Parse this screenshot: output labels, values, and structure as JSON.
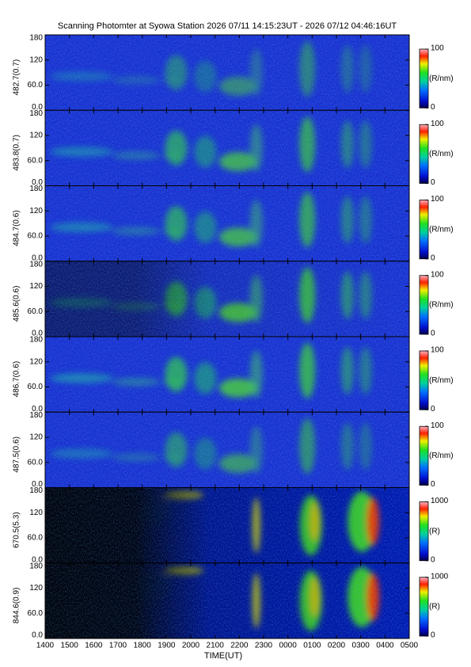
{
  "chart_data": [
    {
      "type": "heatmap",
      "title": "Scanning Photomter at Syowa Station 2026 07/11 14:15:23UT - 2026 07/12 04:46:16UT",
      "ylabel": "482.7(0.7)",
      "xlim": [
        14,
        29
      ],
      "ylim": [
        0,
        180
      ],
      "yticks": [
        {
          "value": 0,
          "label": "0.0"
        },
        {
          "value": 60,
          "label": "60.0"
        },
        120,
        180
      ],
      "clim": [
        0,
        100
      ],
      "cticks": [
        0,
        100
      ],
      "colorbar_label": "(R/nm)"
    },
    {
      "type": "heatmap",
      "ylabel": "483.8(0.7)",
      "xlim": [
        14,
        29
      ],
      "ylim": [
        0,
        180
      ],
      "yticks": [
        {
          "value": 0,
          "label": "0.0"
        },
        {
          "value": 60,
          "label": "60.0"
        },
        120,
        180
      ],
      "clim": [
        0,
        100
      ],
      "cticks": [
        0,
        100
      ],
      "colorbar_label": "(R/nm)"
    },
    {
      "type": "heatmap",
      "ylabel": "484.7(0.6)",
      "xlim": [
        14,
        29
      ],
      "ylim": [
        0,
        180
      ],
      "yticks": [
        {
          "value": 0,
          "label": "0.0"
        },
        {
          "value": 60,
          "label": "60.0"
        },
        120,
        180
      ],
      "clim": [
        0,
        100
      ],
      "cticks": [
        0,
        100
      ],
      "colorbar_label": "(R/nm)"
    },
    {
      "type": "heatmap",
      "ylabel": "485.6(0.6)",
      "xlim": [
        14,
        29
      ],
      "ylim": [
        0,
        180
      ],
      "yticks": [
        {
          "value": 0,
          "label": "0.0"
        },
        {
          "value": 60,
          "label": "60.0"
        },
        120,
        180
      ],
      "clim": [
        0,
        100
      ],
      "cticks": [
        0,
        100
      ],
      "colorbar_label": "(R/nm)"
    },
    {
      "type": "heatmap",
      "ylabel": "486.7(0.6)",
      "xlim": [
        14,
        29
      ],
      "ylim": [
        0,
        180
      ],
      "yticks": [
        {
          "value": 0,
          "label": "0.0"
        },
        {
          "value": 60,
          "label": "60.0"
        },
        120,
        180
      ],
      "clim": [
        0,
        100
      ],
      "cticks": [
        0,
        100
      ],
      "colorbar_label": "(R/nm)"
    },
    {
      "type": "heatmap",
      "ylabel": "487.5(0.6)",
      "xlim": [
        14,
        29
      ],
      "ylim": [
        0,
        180
      ],
      "yticks": [
        {
          "value": 0,
          "label": "0.0"
        },
        {
          "value": 60,
          "label": "60.0"
        },
        120,
        180
      ],
      "clim": [
        0,
        100
      ],
      "cticks": [
        0,
        100
      ],
      "colorbar_label": "(R/nm)"
    },
    {
      "type": "heatmap",
      "ylabel": "670.5(5.3)",
      "xlim": [
        14,
        29
      ],
      "ylim": [
        0,
        180
      ],
      "yticks": [
        {
          "value": 0,
          "label": "0.0"
        },
        {
          "value": 60,
          "label": "60.0"
        },
        120,
        180
      ],
      "clim": [
        0,
        1000
      ],
      "cticks": [
        0,
        1000
      ],
      "colorbar_label": "(R)"
    },
    {
      "type": "heatmap",
      "ylabel": "844.6(0.9)",
      "xlim": [
        14,
        29
      ],
      "ylim": [
        0,
        180
      ],
      "yticks": [
        {
          "value": 0,
          "label": "0.0"
        },
        {
          "value": 60,
          "label": "60.0"
        },
        120,
        180
      ],
      "clim": [
        0,
        1000
      ],
      "cticks": [
        0,
        1000
      ],
      "colorbar_label": "(R)",
      "xlabel": "TIME(UT)",
      "xticks": [
        {
          "value": 14,
          "label": "1400"
        },
        {
          "value": 15,
          "label": "1500"
        },
        {
          "value": 16,
          "label": "1600"
        },
        {
          "value": 17,
          "label": "1700"
        },
        {
          "value": 18,
          "label": "1800"
        },
        {
          "value": 19,
          "label": "1900"
        },
        {
          "value": 20,
          "label": "2000"
        },
        {
          "value": 21,
          "label": "2100"
        },
        {
          "value": 22,
          "label": "2200"
        },
        {
          "value": 23,
          "label": "2300"
        },
        {
          "value": 24,
          "label": "0000"
        },
        {
          "value": 25,
          "label": "0100"
        },
        {
          "value": 26,
          "label": "0200"
        },
        {
          "value": 27,
          "label": "0300"
        },
        {
          "value": 28,
          "label": "0400"
        },
        {
          "value": 29,
          "label": "0500"
        }
      ]
    }
  ]
}
